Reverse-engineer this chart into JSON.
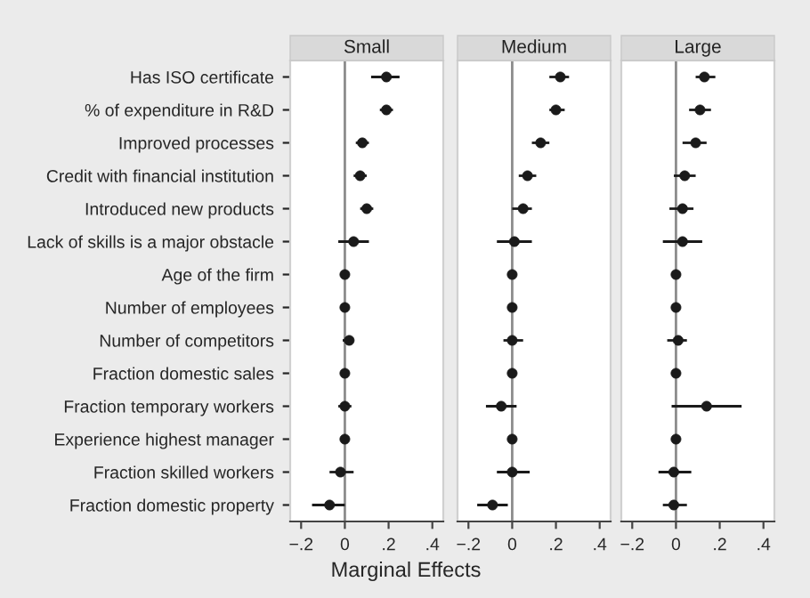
{
  "chart_data": [
    {
      "type": "scatter",
      "orientation": "horizontal",
      "title": "Small",
      "xlabel": "Marginal Effects",
      "tick_labels": "xy",
      "marker": "circle",
      "color": "#1a1a1a",
      "categories": [
        "Has ISO certificate",
        "% of expenditure in R&D",
        "Improved processes",
        "Credit with financial institution",
        "Introduced new products",
        "Lack of skills is a major obstacle",
        "Age of the firm",
        "Number of employees",
        "Number of competitors",
        "Fraction domestic sales",
        "Fraction temporary workers",
        "Experience highest manager",
        "Fraction skilled workers",
        "Fraction domestic property"
      ],
      "values": [
        0.19,
        0.19,
        0.08,
        0.07,
        0.1,
        0.04,
        0,
        0,
        0.02,
        0,
        0,
        0,
        -0.02,
        -0.07
      ],
      "errors": [
        [
          0.12,
          0.25
        ],
        [
          0.16,
          0.22
        ],
        [
          0.05,
          0.11
        ],
        [
          0.04,
          0.1
        ],
        [
          0.07,
          0.13
        ],
        [
          -0.03,
          0.11
        ],
        null,
        null,
        [
          -0.01,
          0.04
        ],
        null,
        [
          -0.03,
          0.03
        ],
        null,
        [
          -0.07,
          0.04
        ],
        [
          -0.15,
          0.0
        ]
      ],
      "xlim": [
        -0.25,
        0.45
      ],
      "xticks": [
        {
          "value": -0.2,
          "label": "−.2"
        },
        0,
        {
          "value": 0.2,
          "label": ".2"
        },
        {
          "value": 0.4,
          "label": ".4"
        }
      ],
      "ref_lines": [
        {
          "axis": "x",
          "value": 0,
          "color": "#8c8c8c"
        }
      ]
    },
    {
      "type": "scatter",
      "orientation": "horizontal",
      "title": "Medium",
      "tick_labels": "x",
      "marker": "circle",
      "color": "#1a1a1a",
      "categories": [
        null,
        null,
        null,
        null,
        null,
        null,
        null,
        null,
        null,
        null,
        null,
        null,
        null,
        null
      ],
      "values": [
        0.22,
        0.2,
        0.13,
        0.07,
        0.05,
        0.01,
        0,
        0,
        0,
        0,
        -0.05,
        0,
        0,
        -0.09
      ],
      "errors": [
        [
          0.17,
          0.26
        ],
        [
          0.17,
          0.24
        ],
        [
          0.09,
          0.17
        ],
        [
          0.03,
          0.11
        ],
        [
          0.0,
          0.09
        ],
        [
          -0.07,
          0.09
        ],
        null,
        null,
        [
          -0.04,
          0.05
        ],
        null,
        [
          -0.12,
          0.02
        ],
        null,
        [
          -0.07,
          0.08
        ],
        [
          -0.16,
          -0.02
        ]
      ],
      "xlim": [
        -0.25,
        0.45
      ],
      "xticks": [
        {
          "value": -0.2,
          "label": "−.2"
        },
        0,
        {
          "value": 0.2,
          "label": ".2"
        },
        {
          "value": 0.4,
          "label": ".4"
        }
      ],
      "ref_lines": [
        {
          "axis": "x",
          "value": 0,
          "color": "#8c8c8c"
        }
      ]
    },
    {
      "type": "scatter",
      "orientation": "horizontal",
      "title": "Large",
      "tick_labels": "x",
      "marker": "circle",
      "color": "#1a1a1a",
      "categories": [
        null,
        null,
        null,
        null,
        null,
        null,
        null,
        null,
        null,
        null,
        null,
        null,
        null,
        null
      ],
      "values": [
        0.13,
        0.11,
        0.09,
        0.04,
        0.03,
        0.03,
        0,
        0,
        0.01,
        0,
        0.14,
        0,
        -0.01,
        -0.01
      ],
      "errors": [
        [
          0.09,
          0.18
        ],
        [
          0.06,
          0.16
        ],
        [
          0.03,
          0.14
        ],
        [
          -0.01,
          0.09
        ],
        [
          -0.03,
          0.08
        ],
        [
          -0.06,
          0.12
        ],
        null,
        null,
        [
          -0.04,
          0.05
        ],
        null,
        [
          -0.02,
          0.3
        ],
        null,
        [
          -0.08,
          0.07
        ],
        [
          -0.06,
          0.05
        ]
      ],
      "xlim": [
        -0.25,
        0.45
      ],
      "xticks": [
        {
          "value": -0.2,
          "label": "−.2"
        },
        0,
        {
          "value": 0.2,
          "label": ".2"
        },
        {
          "value": 0.4,
          "label": ".4"
        }
      ],
      "ref_lines": [
        {
          "axis": "x",
          "value": 0,
          "color": "#8c8c8c"
        }
      ]
    }
  ]
}
